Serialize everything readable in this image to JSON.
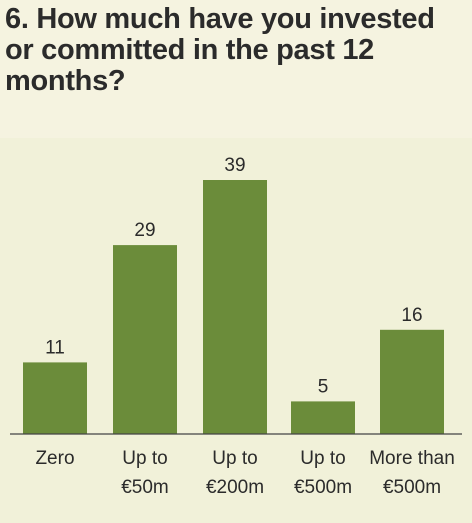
{
  "chart_data": {
    "type": "bar",
    "title": "6. How much have you invested or committed in the past 12 months?",
    "categories": [
      [
        "Zero"
      ],
      [
        "Up to",
        "€50m"
      ],
      [
        "Up to",
        "€200m"
      ],
      [
        "Up to",
        "€500m"
      ],
      [
        "More than",
        "€500m"
      ]
    ],
    "values": [
      11,
      29,
      39,
      5,
      16
    ],
    "data_labels": [
      "11",
      "29",
      "39",
      "5",
      "16"
    ],
    "xlabel": "",
    "ylabel": "",
    "ylim": [
      0,
      39
    ],
    "grid": false,
    "colors": {
      "bar": "#6b8c3a",
      "background": "#f1f1d9",
      "header": "#f5f3e0",
      "text": "#2b2b2b"
    }
  }
}
